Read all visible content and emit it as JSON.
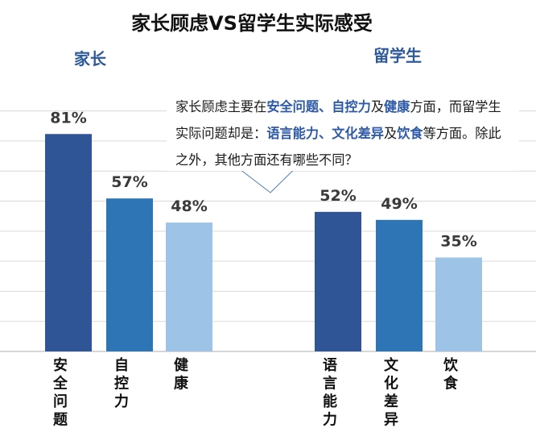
{
  "chart_data": {
    "type": "bar",
    "title": "家长顾虑VS留学生实际感受",
    "groups": [
      {
        "name": "家长",
        "categories": [
          "安全问题",
          "自控力",
          "健康"
        ],
        "values": [
          81,
          57,
          48
        ],
        "labels": [
          "81%",
          "57%",
          "48%"
        ]
      },
      {
        "name": "留学生",
        "categories": [
          "语言能力",
          "文化差异",
          "饮食"
        ],
        "values": [
          52,
          49,
          35
        ],
        "labels": [
          "52%",
          "49%",
          "35%"
        ]
      }
    ],
    "ylim": [
      0,
      100
    ],
    "grid": true,
    "xlabel": "",
    "ylabel": ""
  },
  "colors": {
    "shade_dark": "#2f5597",
    "shade_mid": "#2e75b6",
    "shade_light": "#9dc3e6",
    "group_label": "#2e5a9b",
    "highlight": "#2e5aa8"
  },
  "callout": {
    "t1": "家长顾虑主要在",
    "k1": "安全问题、自控力",
    "t2": "及",
    "k2": "健康",
    "t3": "方面，而留学生实际问题却是：",
    "k3": "语言能力、文化差异",
    "t4": "及",
    "k4": "饮食",
    "t5": "等方面。除此之外，其他方面还有哪些不同？"
  }
}
